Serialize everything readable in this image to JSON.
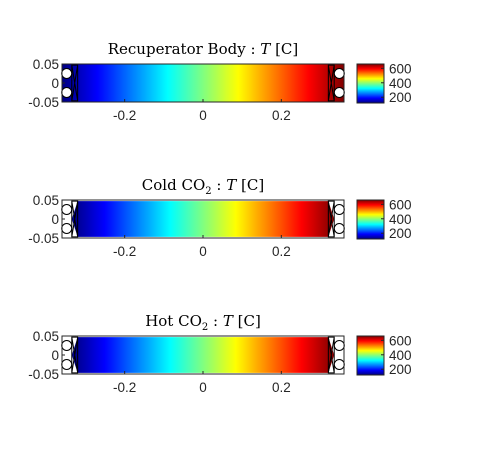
{
  "chart_data": [
    {
      "type": "heatmap",
      "title_parts": {
        "lead": "Recuperator Body : ",
        "var": "T",
        "unit": " [C]"
      },
      "field_variable": "T",
      "field_unit": "C",
      "x_range": [
        -0.36,
        0.36
      ],
      "y_range": [
        -0.05,
        0.05
      ],
      "x_ticks": [
        -0.2,
        0,
        0.2
      ],
      "x_tick_labels": [
        "-0.2",
        "0",
        "0.2"
      ],
      "y_ticks": [
        0.05,
        0,
        -0.05
      ],
      "y_tick_labels": [
        "0.05",
        "0",
        "-0.05"
      ],
      "temperature_left_end": 120,
      "temperature_right_end": 660,
      "colorbar": {
        "range": [
          120,
          660
        ],
        "ticks": [
          600,
          400,
          200
        ],
        "tick_labels": [
          "600",
          "400",
          "200"
        ],
        "colormap": "jet"
      },
      "header_ports": "circles",
      "background": "#7f0000"
    },
    {
      "type": "heatmap",
      "title_parts": {
        "lead": "Cold CO",
        "sub": "2",
        "tail": " : ",
        "var": "T",
        "unit": " [C]"
      },
      "field_variable": "T",
      "field_unit": "C",
      "x_range": [
        -0.36,
        0.36
      ],
      "y_range": [
        -0.05,
        0.05
      ],
      "x_ticks": [
        -0.2,
        0,
        0.2
      ],
      "x_tick_labels": [
        "-0.2",
        "0",
        "0.2"
      ],
      "y_ticks": [
        0.05,
        0,
        -0.05
      ],
      "y_tick_labels": [
        "0.05",
        "0",
        "-0.05"
      ],
      "temperature_left_end": 120,
      "temperature_right_end": 660,
      "colorbar": {
        "range": [
          120,
          660
        ],
        "ticks": [
          600,
          400,
          200
        ],
        "tick_labels": [
          "600",
          "400",
          "200"
        ],
        "colormap": "jet"
      },
      "header_ports": "circles",
      "background": "#ffffff"
    },
    {
      "type": "heatmap",
      "title_parts": {
        "lead": "Hot CO",
        "sub": "2",
        "tail": " : ",
        "var": "T",
        "unit": " [C]"
      },
      "field_variable": "T",
      "field_unit": "C",
      "x_range": [
        -0.36,
        0.36
      ],
      "y_range": [
        -0.05,
        0.05
      ],
      "x_ticks": [
        -0.2,
        0,
        0.2
      ],
      "x_tick_labels": [
        "-0.2",
        "0",
        "0.2"
      ],
      "y_ticks": [
        0.05,
        0,
        -0.05
      ],
      "y_tick_labels": [
        "0.05",
        "0",
        "-0.05"
      ],
      "temperature_left_end": 120,
      "temperature_right_end": 660,
      "colorbar": {
        "range": [
          120,
          660
        ],
        "ticks": [
          600,
          400,
          200
        ],
        "tick_labels": [
          "600",
          "400",
          "200"
        ],
        "colormap": "jet"
      },
      "header_ports": "circles",
      "background": "#ffffff"
    }
  ]
}
